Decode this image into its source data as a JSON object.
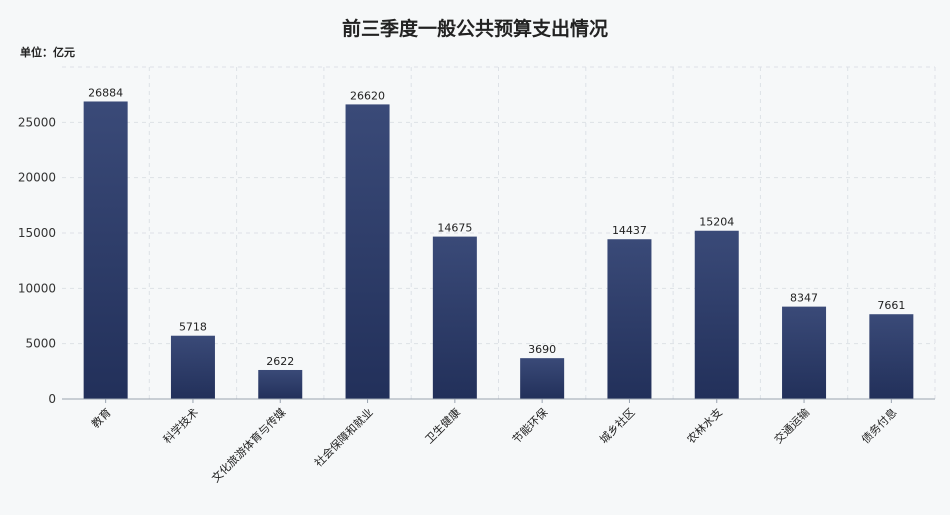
{
  "chart_data": {
    "type": "bar",
    "title": "前三季度一般公共预算支出情况",
    "unit_label": "单位：亿元",
    "categories": [
      "教育",
      "科学技术",
      "文化旅游体育与传媒",
      "社会保障和就业",
      "卫生健康",
      "节能环保",
      "城乡社区",
      "农林水支",
      "交通运输",
      "债务付息"
    ],
    "values": [
      26884,
      5718,
      2622,
      26620,
      14675,
      3690,
      14437,
      15204,
      8347,
      7661
    ],
    "ylim": [
      0,
      30000
    ],
    "yticks": [
      0,
      5000,
      10000,
      15000,
      20000,
      25000
    ],
    "grid": true,
    "bar_color": "#2b3a62"
  }
}
